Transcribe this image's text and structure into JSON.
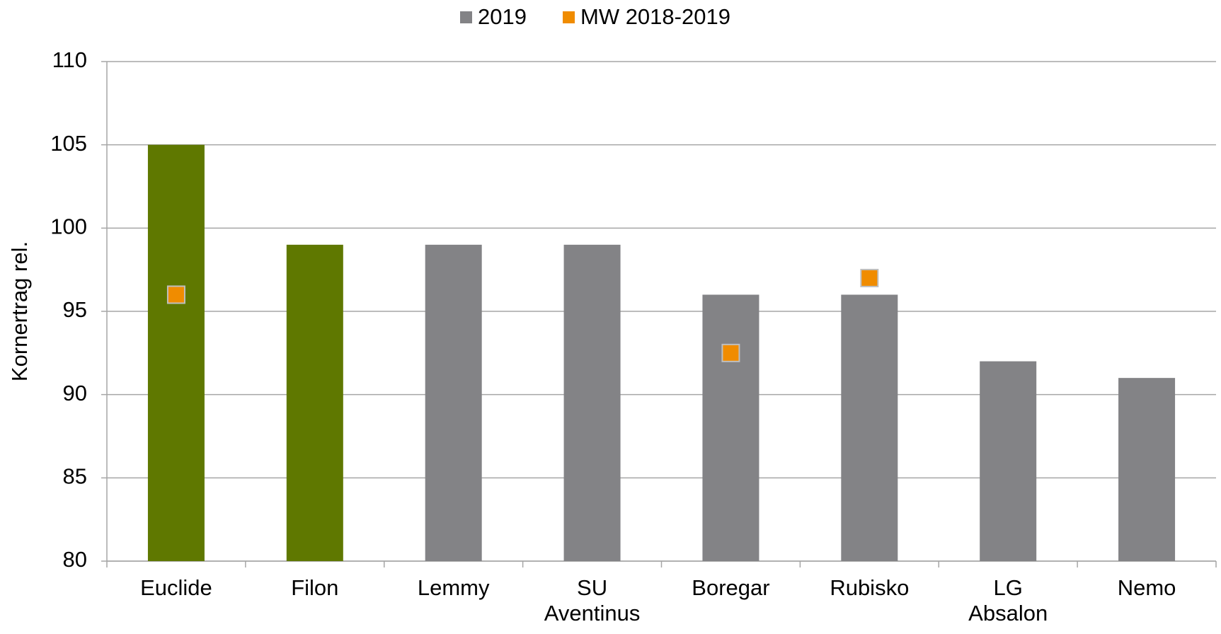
{
  "chart_data": {
    "type": "bar",
    "y_label": "Kornertrag rel.",
    "categories": [
      "Euclide",
      "Filon",
      "Lemmy",
      "SU Aventinus",
      "Boregar",
      "Rubisko",
      "LG Absalon",
      "Nemo"
    ],
    "series": [
      {
        "name": "2019",
        "color": "#838386",
        "colors": [
          "#5f7800",
          "#5f7800",
          "#838386",
          "#838386",
          "#838386",
          "#838386",
          "#838386",
          "#838386"
        ],
        "values": [
          105,
          99,
          99,
          99,
          96,
          96,
          92,
          91
        ]
      },
      {
        "name": "MW 2018-2019",
        "color": "#f08c00",
        "marker": "square",
        "values": [
          96,
          null,
          null,
          null,
          92.5,
          97,
          null,
          null
        ]
      }
    ],
    "ylim": [
      80,
      110
    ],
    "yticks": [
      80,
      85,
      90,
      95,
      100,
      105,
      110
    ],
    "grid": true,
    "legend": "top"
  }
}
